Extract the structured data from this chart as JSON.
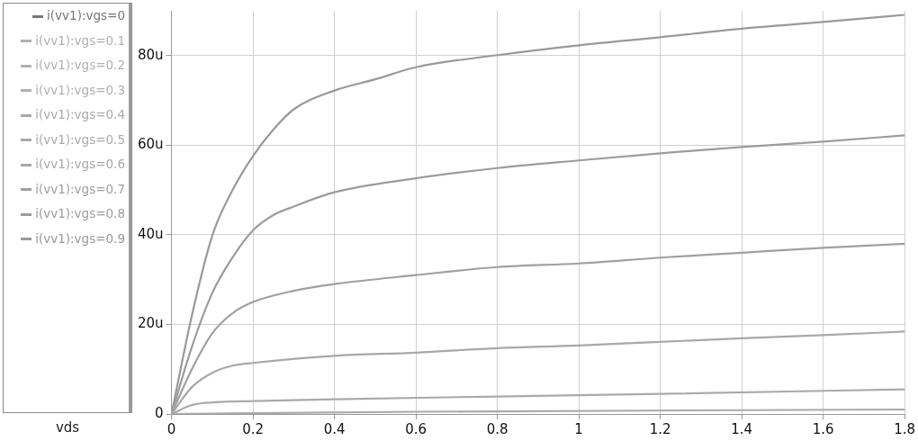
{
  "chart_data": {
    "type": "line",
    "xlabel": "vds",
    "legend": "left",
    "grid": true,
    "line_style": "solid",
    "marker": "none",
    "xlim": [
      0,
      1.8
    ],
    "xticks": [
      0,
      0.2,
      0.4,
      0.6,
      0.8,
      1,
      1.2,
      1.4,
      1.6,
      1.8
    ],
    "ylim": [
      0,
      90
    ],
    "yticks": [
      0,
      {
        "value": 20,
        "label": "20u"
      },
      {
        "value": 40,
        "label": "40u"
      },
      {
        "value": 60,
        "label": "60u"
      },
      {
        "value": 80,
        "label": "80u"
      }
    ],
    "series": [
      {
        "name": "i(vv1):vgs=0",
        "color": "#777777",
        "values": [
          null
        ]
      },
      {
        "name": "i(vv1):vgs=0.1",
        "color": "#b0b0b0",
        "values": [
          null
        ]
      },
      {
        "name": "i(vv1):vgs=0.2",
        "color": "#b0b0b0",
        "values": [
          null
        ]
      },
      {
        "name": "i(vv1):vgs=0.3",
        "color": "#b0b0b0",
        "values": [
          null
        ]
      },
      {
        "name": "i(vv1):vgs=0.4",
        "color": "#aaaaaa",
        "x": [
          0,
          0.6,
          1.8
        ],
        "values": [
          0,
          0.5,
          1
        ]
      },
      {
        "name": "i(vv1):vgs=0.5",
        "color": "#aaaaaa",
        "x": [
          0,
          0.05,
          0.1,
          0.2,
          0.4,
          0.8,
          1.2,
          1.8
        ],
        "values": [
          0,
          2,
          2.6,
          2.9,
          3.3,
          3.9,
          4.5,
          5.5
        ]
      },
      {
        "name": "i(vv1):vgs=0.6",
        "color": "#a8a8a8",
        "x": [
          0,
          0.05,
          0.1,
          0.15,
          0.2,
          0.4,
          0.6,
          0.8,
          1,
          1.2,
          1.4,
          1.6,
          1.8
        ],
        "values": [
          0,
          6,
          9.2,
          10.8,
          11.4,
          13,
          13.7,
          14.7,
          15.3,
          16.1,
          16.9,
          17.6,
          18.4
        ]
      },
      {
        "name": "i(vv1):vgs=0.7",
        "color": "#a0a0a0",
        "x": [
          0,
          0.05,
          0.1,
          0.15,
          0.2,
          0.3,
          0.4,
          0.6,
          0.8,
          1,
          1.2,
          1.4,
          1.6,
          1.8
        ],
        "values": [
          0,
          10,
          18,
          22.5,
          25,
          27.5,
          29,
          31,
          32.8,
          33.6,
          34.9,
          36,
          37.1,
          38
        ]
      },
      {
        "name": "i(vv1):vgs=0.8",
        "color": "#9c9c9c",
        "x": [
          0,
          0.05,
          0.1,
          0.15,
          0.2,
          0.25,
          0.3,
          0.4,
          0.6,
          0.8,
          1,
          1.2,
          1.4,
          1.6,
          1.8
        ],
        "values": [
          0,
          15,
          27,
          35,
          41,
          44.4,
          46.3,
          49.5,
          52.6,
          54.9,
          56.6,
          58.2,
          59.6,
          60.8,
          62.2
        ]
      },
      {
        "name": "i(vv1):vgs=0.9",
        "color": "#999999",
        "x": [
          0,
          0.05,
          0.1,
          0.15,
          0.2,
          0.25,
          0.3,
          0.4,
          0.5,
          0.6,
          0.8,
          1,
          1.2,
          1.4,
          1.6,
          1.8
        ],
        "values": [
          0,
          22,
          39.8,
          50,
          57.6,
          63.5,
          68,
          72.2,
          74.7,
          77.4,
          80.1,
          82.3,
          84.1,
          86,
          87.5,
          89.1
        ]
      }
    ]
  }
}
